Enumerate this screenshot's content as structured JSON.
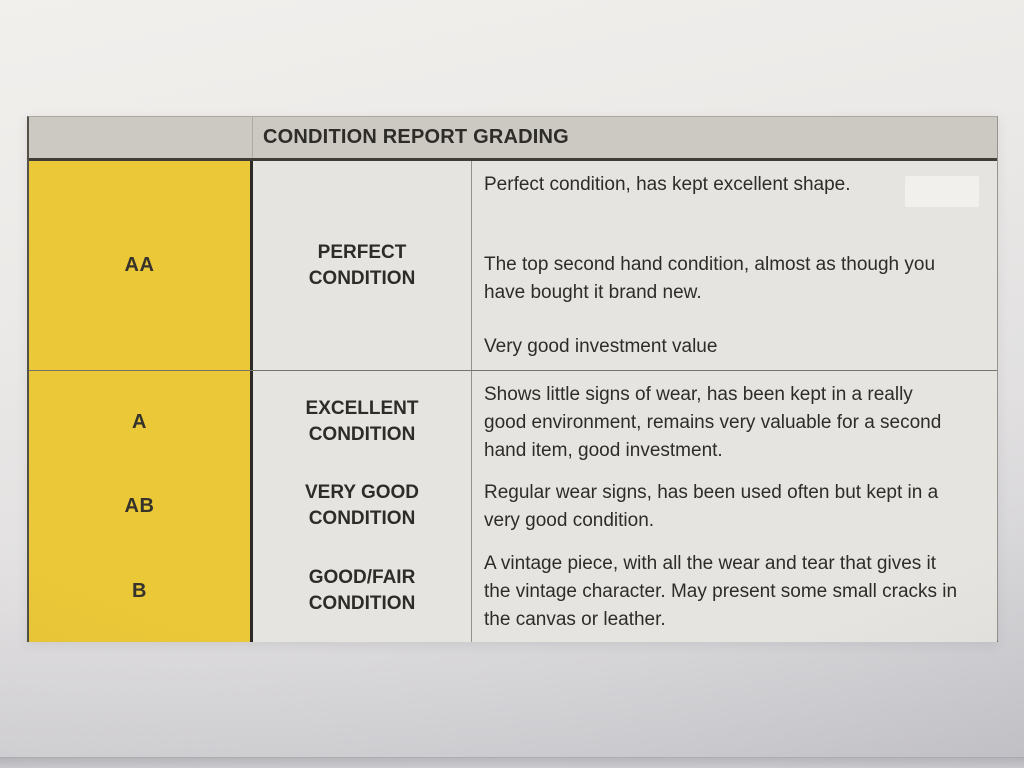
{
  "colors": {
    "grade_column_yellow": "#e9c52d",
    "header_gray": "#c9c6bf",
    "cell_gray": "#e5e3df",
    "text_black": "#23211d"
  },
  "grading_table": {
    "header_title": "CONDITION REPORT GRADING",
    "rows": [
      {
        "grade": "AA",
        "condition_name": "PERFECT CONDITION",
        "description_paragraphs": [
          "Perfect condition, has kept excellent shape.",
          "The top second hand condition, almost as though you have bought it brand new.",
          "Very good investment value"
        ]
      },
      {
        "grade": "A",
        "condition_name": "EXCELLENT CONDITION",
        "description_paragraphs": [
          "Shows little signs of wear, has been kept in a really good environment, remains very valuable for a second hand item, good investment."
        ]
      },
      {
        "grade": "AB",
        "condition_name": "VERY GOOD CONDITION",
        "description_paragraphs": [
          "Regular wear signs, has been used often but kept in a very good condition."
        ]
      },
      {
        "grade": "B",
        "condition_name": "GOOD/FAIR CONDITION",
        "description_paragraphs": [
          "A vintage piece, with all the wear and tear that gives it the vintage character. May present some small cracks in the canvas or leather."
        ]
      }
    ]
  }
}
